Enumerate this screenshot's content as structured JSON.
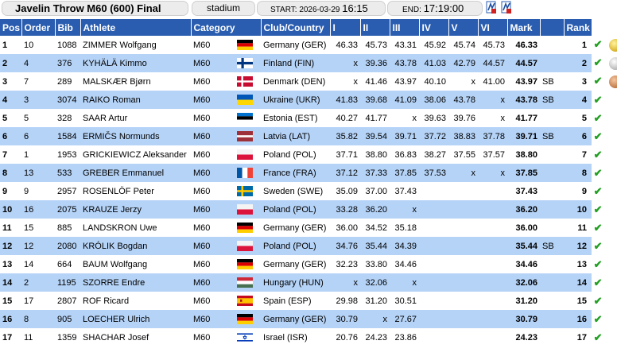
{
  "header": {
    "title": "Javelin Throw M60 (600) Final",
    "venue": "stadium",
    "start_label": "START:",
    "start_date": "2026-03-29",
    "start_time": "16:15",
    "end_label": "END:",
    "end_time": "17:19:00",
    "icons": [
      "start-list-icon",
      "results-icon"
    ]
  },
  "columns": [
    "Pos",
    "Order",
    "Bib",
    "Athlete",
    "Category",
    "Club/Country",
    "I",
    "II",
    "III",
    "IV",
    "V",
    "VI",
    "Mark",
    "",
    "Rank"
  ],
  "rows": [
    {
      "pos": "1",
      "order": "10",
      "bib": "1088",
      "athlete": "ZIMMER Wolfgang",
      "category": "M60",
      "flag": "GER",
      "club": "Germany (GER)",
      "a": [
        "46.33",
        "45.73",
        "43.31",
        "45.92",
        "45.74",
        "45.73"
      ],
      "mark": "46.33",
      "note": "",
      "rank": "1",
      "medal": "gold"
    },
    {
      "pos": "2",
      "order": "4",
      "bib": "376",
      "athlete": "KYHÄLÄ Kimmo",
      "category": "M60",
      "flag": "FIN",
      "club": "Finland (FIN)",
      "a": [
        "x",
        "39.36",
        "43.78",
        "41.03",
        "42.79",
        "44.57"
      ],
      "mark": "44.57",
      "note": "",
      "rank": "2",
      "medal": "silver"
    },
    {
      "pos": "3",
      "order": "7",
      "bib": "289",
      "athlete": "MALSKÆR Bjørn",
      "category": "M60",
      "flag": "DEN",
      "club": "Denmark (DEN)",
      "a": [
        "x",
        "41.46",
        "43.97",
        "40.10",
        "x",
        "41.00"
      ],
      "mark": "43.97",
      "note": "SB",
      "rank": "3",
      "medal": "bronze"
    },
    {
      "pos": "4",
      "order": "3",
      "bib": "3074",
      "athlete": "RAIKO Roman",
      "category": "M60",
      "flag": "UKR",
      "club": "Ukraine (UKR)",
      "a": [
        "41.83",
        "39.68",
        "41.09",
        "38.06",
        "43.78",
        "x"
      ],
      "mark": "43.78",
      "note": "SB",
      "rank": "4",
      "medal": ""
    },
    {
      "pos": "5",
      "order": "5",
      "bib": "328",
      "athlete": "SAAR Artur",
      "category": "M60",
      "flag": "EST",
      "club": "Estonia (EST)",
      "a": [
        "40.27",
        "41.77",
        "x",
        "39.63",
        "39.76",
        "x"
      ],
      "mark": "41.77",
      "note": "",
      "rank": "5",
      "medal": ""
    },
    {
      "pos": "6",
      "order": "6",
      "bib": "1584",
      "athlete": "ERMIČS Normunds",
      "category": "M60",
      "flag": "LAT",
      "club": "Latvia (LAT)",
      "a": [
        "35.82",
        "39.54",
        "39.71",
        "37.72",
        "38.83",
        "37.78"
      ],
      "mark": "39.71",
      "note": "SB",
      "rank": "6",
      "medal": ""
    },
    {
      "pos": "7",
      "order": "1",
      "bib": "1953",
      "athlete": "GRICKIEWICZ Aleksander",
      "category": "M60",
      "flag": "POL",
      "club": "Poland (POL)",
      "a": [
        "37.71",
        "38.80",
        "36.83",
        "38.27",
        "37.55",
        "37.57"
      ],
      "mark": "38.80",
      "note": "",
      "rank": "7",
      "medal": ""
    },
    {
      "pos": "8",
      "order": "13",
      "bib": "533",
      "athlete": "GREBER Emmanuel",
      "category": "M60",
      "flag": "FRA",
      "club": "France (FRA)",
      "a": [
        "37.12",
        "37.33",
        "37.85",
        "37.53",
        "x",
        "x"
      ],
      "mark": "37.85",
      "note": "",
      "rank": "8",
      "medal": ""
    },
    {
      "pos": "9",
      "order": "9",
      "bib": "2957",
      "athlete": "ROSENLÖF Peter",
      "category": "M60",
      "flag": "SWE",
      "club": "Sweden (SWE)",
      "a": [
        "35.09",
        "37.00",
        "37.43",
        "",
        "",
        ""
      ],
      "mark": "37.43",
      "note": "",
      "rank": "9",
      "medal": ""
    },
    {
      "pos": "10",
      "order": "16",
      "bib": "2075",
      "athlete": "KRAUZE Jerzy",
      "category": "M60",
      "flag": "POL",
      "club": "Poland (POL)",
      "a": [
        "33.28",
        "36.20",
        "x",
        "",
        "",
        ""
      ],
      "mark": "36.20",
      "note": "",
      "rank": "10",
      "medal": ""
    },
    {
      "pos": "11",
      "order": "15",
      "bib": "885",
      "athlete": "LANDSKRON Uwe",
      "category": "M60",
      "flag": "GER",
      "club": "Germany (GER)",
      "a": [
        "36.00",
        "34.52",
        "35.18",
        "",
        "",
        ""
      ],
      "mark": "36.00",
      "note": "",
      "rank": "11",
      "medal": ""
    },
    {
      "pos": "12",
      "order": "12",
      "bib": "2080",
      "athlete": "KRÓLIK Bogdan",
      "category": "M60",
      "flag": "POL",
      "club": "Poland (POL)",
      "a": [
        "34.76",
        "35.44",
        "34.39",
        "",
        "",
        ""
      ],
      "mark": "35.44",
      "note": "SB",
      "rank": "12",
      "medal": ""
    },
    {
      "pos": "13",
      "order": "14",
      "bib": "664",
      "athlete": "BAUM Wolfgang",
      "category": "M60",
      "flag": "GER",
      "club": "Germany (GER)",
      "a": [
        "32.23",
        "33.80",
        "34.46",
        "",
        "",
        ""
      ],
      "mark": "34.46",
      "note": "",
      "rank": "13",
      "medal": ""
    },
    {
      "pos": "14",
      "order": "2",
      "bib": "1195",
      "athlete": "SZORRE Endre",
      "category": "M60",
      "flag": "HUN",
      "club": "Hungary (HUN)",
      "a": [
        "x",
        "32.06",
        "x",
        "",
        "",
        ""
      ],
      "mark": "32.06",
      "note": "",
      "rank": "14",
      "medal": ""
    },
    {
      "pos": "15",
      "order": "17",
      "bib": "2807",
      "athlete": "ROF Ricard",
      "category": "M60",
      "flag": "ESP",
      "club": "Spain (ESP)",
      "a": [
        "29.98",
        "31.20",
        "30.51",
        "",
        "",
        ""
      ],
      "mark": "31.20",
      "note": "",
      "rank": "15",
      "medal": ""
    },
    {
      "pos": "16",
      "order": "8",
      "bib": "905",
      "athlete": "LOECHER Ulrich",
      "category": "M60",
      "flag": "GER",
      "club": "Germany (GER)",
      "a": [
        "30.79",
        "x",
        "27.67",
        "",
        "",
        ""
      ],
      "mark": "30.79",
      "note": "",
      "rank": "16",
      "medal": ""
    },
    {
      "pos": "17",
      "order": "11",
      "bib": "1359",
      "athlete": "SHACHAR Josef",
      "category": "M60",
      "flag": "ISR",
      "club": "Israel (ISR)",
      "a": [
        "20.76",
        "24.23",
        "23.86",
        "",
        "",
        ""
      ],
      "mark": "24.23",
      "note": "",
      "rank": "17",
      "medal": ""
    }
  ],
  "status_icon": "check-icon",
  "colors": {
    "header_bg": "#2a5db0",
    "row_alt": "#b5d3f7",
    "check": "#23a023"
  }
}
